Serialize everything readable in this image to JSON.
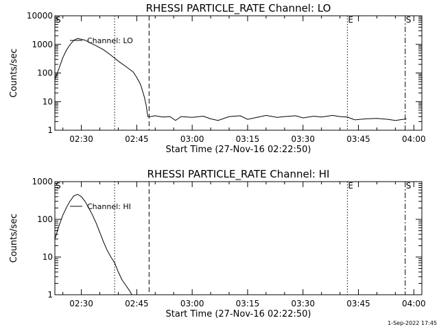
{
  "footer": {
    "timestamp": "1-Sep-2022 17:45"
  },
  "chart_data": [
    {
      "type": "line",
      "title": "RHESSI PARTICLE_RATE Channel: LO",
      "xlabel": "Start Time (27-Nov-16 02:22:50)",
      "ylabel": "Counts/sec",
      "yscale": "log",
      "ylim": [
        1,
        10000
      ],
      "xlim": [
        "02:22:50",
        "04:02:10"
      ],
      "x_ticks": [
        "02:30",
        "02:45",
        "03:00",
        "03:15",
        "03:30",
        "03:45",
        "04:00"
      ],
      "y_ticks": [
        "1",
        "10",
        "100",
        "1000",
        "10000"
      ],
      "series": [
        {
          "name": "Channel: LO",
          "x": [
            "02:22:50",
            "02:24:00",
            "02:25:00",
            "02:26:00",
            "02:27:00",
            "02:28:00",
            "02:29:00",
            "02:30:00",
            "02:31:00",
            "02:32:00",
            "02:34:00",
            "02:36:00",
            "02:38:00",
            "02:40:00",
            "02:42:00",
            "02:44:00",
            "02:45:00",
            "02:46:00",
            "02:46:30",
            "02:47:00",
            "02:47:30",
            "02:48:00",
            "02:48:40",
            "02:50:00",
            "02:52:00",
            "02:54:00",
            "02:55:30",
            "02:57:00",
            "03:00:00",
            "03:03:00",
            "03:05:00",
            "03:07:00",
            "03:10:00",
            "03:13:00",
            "03:15:00",
            "03:18:00",
            "03:20:00",
            "03:23:00",
            "03:25:00",
            "03:28:00",
            "03:30:00",
            "03:33:00",
            "03:35:00",
            "03:38:00",
            "03:40:00",
            "03:42:00",
            "03:44:00",
            "03:47:00",
            "03:50:00",
            "03:53:00",
            "03:55:00",
            "03:58:00"
          ],
          "y": [
            60,
            150,
            350,
            650,
            1000,
            1400,
            1600,
            1500,
            1400,
            1200,
            900,
            650,
            420,
            260,
            170,
            110,
            70,
            40,
            25,
            15,
            8,
            3,
            3,
            3.2,
            2.9,
            3,
            2.2,
            3,
            2.8,
            3.1,
            2.5,
            2.2,
            3,
            3.2,
            2.4,
            2.9,
            3.3,
            2.8,
            3,
            3.2,
            2.7,
            3.1,
            2.9,
            3.3,
            3,
            2.9,
            2.3,
            2.5,
            2.6,
            2.4,
            2.2,
            2.5
          ]
        }
      ],
      "markers": [
        {
          "label": "S",
          "x": "02:22:50",
          "style": "solid"
        },
        {
          "label": "",
          "x": "02:39:00",
          "style": "dotted"
        },
        {
          "label": "",
          "x": "02:48:20",
          "style": "dashed"
        },
        {
          "label": "E",
          "x": "03:42:00",
          "style": "dotted"
        },
        {
          "label": "S",
          "x": "03:57:40",
          "style": "dashdot"
        }
      ]
    },
    {
      "type": "line",
      "title": "RHESSI PARTICLE_RATE Channel: HI",
      "xlabel": "Start Time (27-Nov-16 02:22:50)",
      "ylabel": "Counts/sec",
      "yscale": "log",
      "ylim": [
        1,
        1000
      ],
      "xlim": [
        "02:22:50",
        "04:02:10"
      ],
      "x_ticks": [
        "02:30",
        "02:45",
        "03:00",
        "03:15",
        "03:30",
        "03:45",
        "04:00"
      ],
      "y_ticks": [
        "1",
        "10",
        "100",
        "1000"
      ],
      "series": [
        {
          "name": "Channel: HI",
          "x": [
            "02:22:50",
            "02:24:00",
            "02:25:00",
            "02:26:00",
            "02:27:00",
            "02:28:00",
            "02:29:00",
            "02:30:00",
            "02:31:00",
            "02:32:00",
            "02:33:00",
            "02:34:00",
            "02:35:00",
            "02:36:00",
            "02:37:00",
            "02:38:00",
            "02:39:00",
            "02:40:00",
            "02:41:00",
            "02:42:00",
            "02:43:00",
            "02:43:40"
          ],
          "y": [
            30,
            70,
            130,
            210,
            310,
            420,
            460,
            400,
            300,
            200,
            130,
            80,
            45,
            25,
            15,
            10,
            7,
            4,
            2.5,
            1.8,
            1.3,
            1
          ]
        }
      ],
      "markers": [
        {
          "label": "S",
          "x": "02:22:50",
          "style": "solid"
        },
        {
          "label": "",
          "x": "02:39:00",
          "style": "dotted"
        },
        {
          "label": "",
          "x": "02:48:20",
          "style": "dashed"
        },
        {
          "label": "E",
          "x": "03:42:00",
          "style": "dotted"
        },
        {
          "label": "S",
          "x": "03:57:40",
          "style": "dashdot"
        }
      ]
    }
  ]
}
